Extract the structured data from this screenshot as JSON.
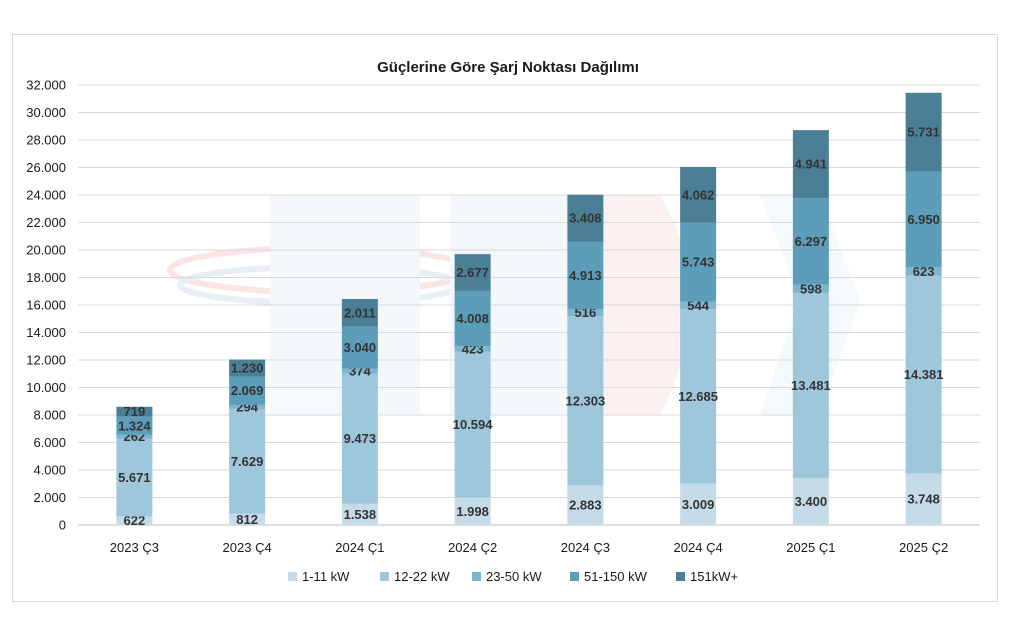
{
  "chart_data": {
    "type": "bar",
    "stacked": true,
    "title": "Güçlerine Göre Şarj Noktası Dağılımı",
    "xlabel": "",
    "ylabel": "",
    "ylim": [
      0,
      32000
    ],
    "yticks": [
      "0",
      "2.000",
      "4.000",
      "6.000",
      "8.000",
      "10.000",
      "12.000",
      "14.000",
      "16.000",
      "18.000",
      "20.000",
      "22.000",
      "24.000",
      "26.000",
      "28.000",
      "30.000",
      "32.000"
    ],
    "grid": true,
    "legend_position": "bottom",
    "categories": [
      "2023 Ç3",
      "2023 Ç4",
      "2024 Ç1",
      "2024 Ç2",
      "2024 Ç3",
      "2024 Ç4",
      "2025 Ç1",
      "2025 Ç2"
    ],
    "series": [
      {
        "name": "1-11 kW",
        "color": "#c5dbe8",
        "values": [
          622,
          812,
          1538,
          1998,
          2883,
          3009,
          3400,
          3748
        ],
        "labels": [
          "622",
          "812",
          "1.538",
          "1.998",
          "2.883",
          "3.009",
          "3.400",
          "3.748"
        ]
      },
      {
        "name": "12-22 kW",
        "color": "#9fc7db",
        "values": [
          5671,
          7629,
          9473,
          10594,
          12303,
          12685,
          13481,
          14381
        ],
        "labels": [
          "5.671",
          "7.629",
          "9.473",
          "10.594",
          "12.303",
          "12.685",
          "13.481",
          "14.381"
        ]
      },
      {
        "name": "23-50 kW",
        "color": "#7fb5cf",
        "values": [
          262,
          294,
          374,
          423,
          516,
          544,
          598,
          623
        ],
        "labels": [
          "262",
          "294",
          "374",
          "423",
          "516",
          "544",
          "598",
          "623"
        ]
      },
      {
        "name": "51-150 kW",
        "color": "#5c9db9",
        "values": [
          1324,
          2069,
          3040,
          4008,
          4913,
          5743,
          6297,
          6950
        ],
        "labels": [
          "1.324",
          "2.069",
          "3.040",
          "4.008",
          "4.913",
          "5.743",
          "6.297",
          "6.950"
        ]
      },
      {
        "name": "151kW+",
        "color": "#4a7f96",
        "values": [
          719,
          1230,
          2011,
          2677,
          3408,
          4062,
          4941,
          5731
        ],
        "labels": [
          "719",
          "1.230",
          "2.011",
          "2.677",
          "3.408",
          "4.062",
          "4.941",
          "5.731"
        ]
      }
    ]
  }
}
